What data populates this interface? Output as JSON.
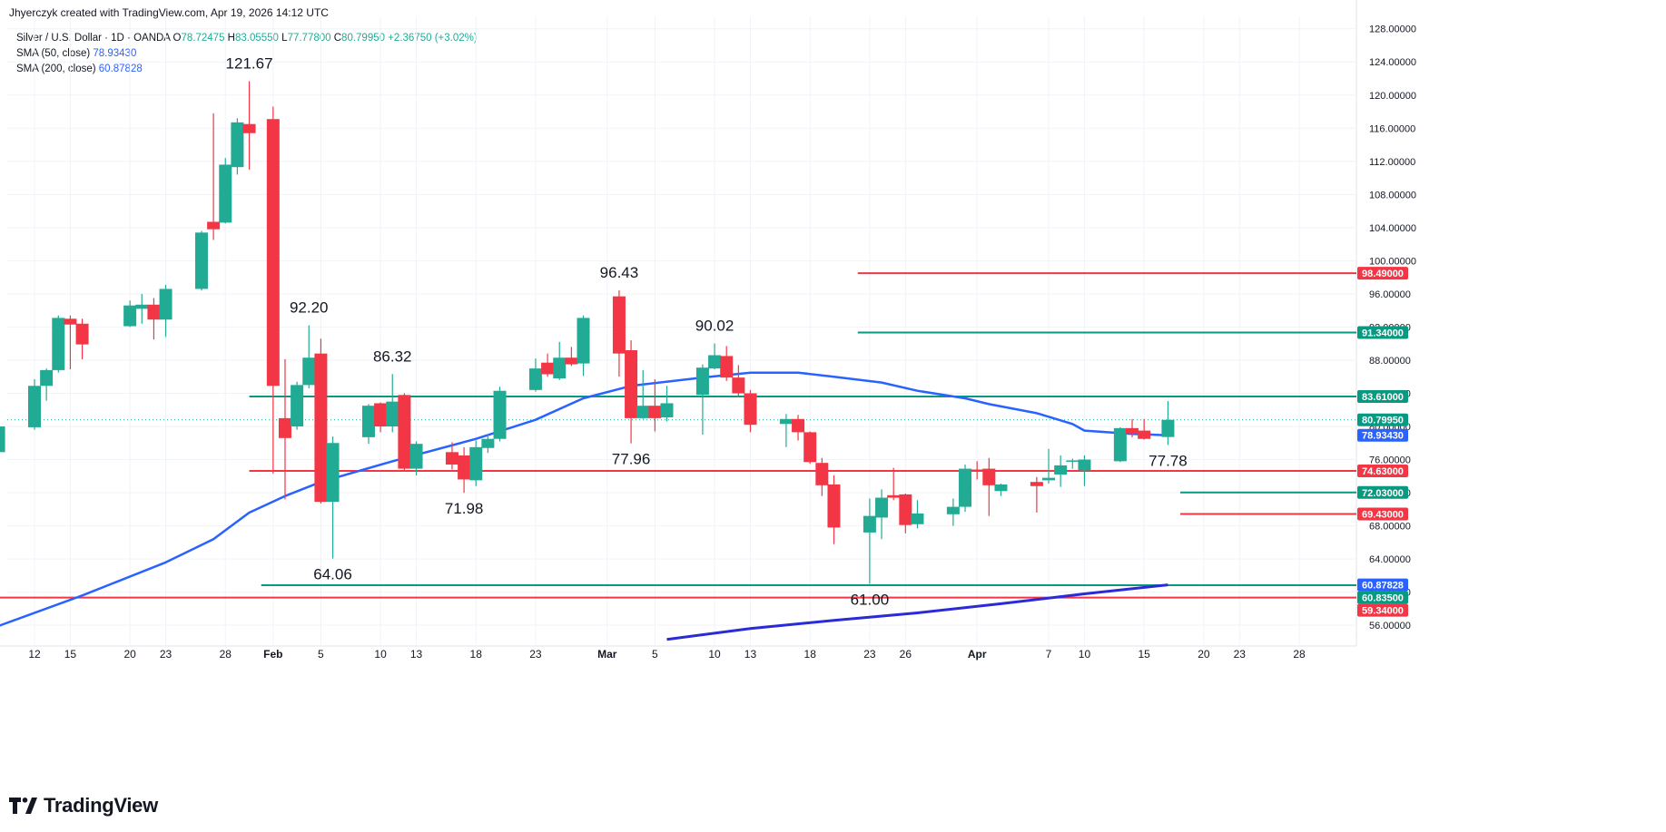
{
  "header": {
    "attribution": "Jhyerczyk created with TradingView.com, Apr 19, 2026 14:12 UTC"
  },
  "legend": {
    "symbol": "Silver / U.S. Dollar · 1D · OANDA",
    "ohlc": {
      "o_label": "O",
      "o": "78.72475",
      "h_label": "H",
      "h": "83.05550",
      "l_label": "L",
      "l": "77.77800",
      "c_label": "C",
      "c": "80.79950",
      "chg": "+2.36750 (+3.02%)"
    },
    "sma50": {
      "label": "SMA (50, close)",
      "value": "78.93430"
    },
    "sma200": {
      "label": "SMA (200, close)",
      "value": "60.87828"
    }
  },
  "branding": {
    "name": "TradingView"
  },
  "colors": {
    "up": "#22ab94",
    "down": "#f23645",
    "sma": "#2962ff",
    "sma200": "#2a2ad8",
    "green_line": "#089981",
    "red_line": "#f23645",
    "grid": "#f0f3fa",
    "axis_text": "#131722"
  },
  "chart_data": {
    "type": "candlestick",
    "title": "Silver / U.S. Dollar · 1D · OANDA",
    "ylim": [
      53.5,
      129.5
    ],
    "y_ticks": [
      "128.00000",
      "124.00000",
      "120.00000",
      "116.00000",
      "112.00000",
      "108.00000",
      "104.00000",
      "100.00000",
      "96.00000",
      "92.00000",
      "88.00000",
      "84.00000",
      "80.00000",
      "76.00000",
      "72.00000",
      "68.00000",
      "64.00000",
      "60.00000",
      "56.00000"
    ],
    "x_ticks": [
      {
        "label": "12",
        "date": "2026-01-12",
        "bold": false
      },
      {
        "label": "15",
        "date": "2026-01-15",
        "bold": false
      },
      {
        "label": "20",
        "date": "2026-01-20",
        "bold": false
      },
      {
        "label": "23",
        "date": "2026-01-23",
        "bold": false
      },
      {
        "label": "28",
        "date": "2026-01-28",
        "bold": false
      },
      {
        "label": "Feb",
        "date": "2026-02-01",
        "bold": true
      },
      {
        "label": "5",
        "date": "2026-02-05",
        "bold": false
      },
      {
        "label": "10",
        "date": "2026-02-10",
        "bold": false
      },
      {
        "label": "13",
        "date": "2026-02-13",
        "bold": false
      },
      {
        "label": "18",
        "date": "2026-02-18",
        "bold": false
      },
      {
        "label": "23",
        "date": "2026-02-23",
        "bold": false
      },
      {
        "label": "Mar",
        "date": "2026-03-01",
        "bold": true
      },
      {
        "label": "5",
        "date": "2026-03-05",
        "bold": false
      },
      {
        "label": "10",
        "date": "2026-03-10",
        "bold": false
      },
      {
        "label": "13",
        "date": "2026-03-13",
        "bold": false
      },
      {
        "label": "18",
        "date": "2026-03-18",
        "bold": false
      },
      {
        "label": "23",
        "date": "2026-03-23",
        "bold": false
      },
      {
        "label": "26",
        "date": "2026-03-26",
        "bold": false
      },
      {
        "label": "Apr",
        "date": "2026-04-01",
        "bold": true
      },
      {
        "label": "7",
        "date": "2026-04-07",
        "bold": false
      },
      {
        "label": "10",
        "date": "2026-04-10",
        "bold": false
      },
      {
        "label": "15",
        "date": "2026-04-15",
        "bold": false
      },
      {
        "label": "20",
        "date": "2026-04-20",
        "bold": false
      },
      {
        "label": "23",
        "date": "2026-04-23",
        "bold": false
      },
      {
        "label": "28",
        "date": "2026-04-28",
        "bold": false
      }
    ],
    "candles": [
      {
        "date": "2026-01-09",
        "o": 76.9,
        "h": 80.8,
        "l": 75.6,
        "c": 80.0
      },
      {
        "date": "2026-01-12",
        "o": 79.9,
        "h": 85.7,
        "l": 79.6,
        "c": 84.9
      },
      {
        "date": "2026-01-13",
        "o": 84.9,
        "h": 87.0,
        "l": 83.1,
        "c": 86.8
      },
      {
        "date": "2026-01-14",
        "o": 86.8,
        "h": 93.4,
        "l": 86.5,
        "c": 93.1
      },
      {
        "date": "2026-01-15",
        "o": 93.0,
        "h": 93.4,
        "l": 86.9,
        "c": 92.3
      },
      {
        "date": "2026-01-16",
        "o": 92.4,
        "h": 93.0,
        "l": 88.1,
        "c": 89.9
      },
      {
        "date": "2026-01-20",
        "o": 92.1,
        "h": 95.2,
        "l": 92.0,
        "c": 94.6
      },
      {
        "date": "2026-01-21",
        "o": 94.2,
        "h": 96.0,
        "l": 92.4,
        "c": 94.7
      },
      {
        "date": "2026-01-22",
        "o": 94.7,
        "h": 95.5,
        "l": 90.5,
        "c": 92.9
      },
      {
        "date": "2026-01-23",
        "o": 92.9,
        "h": 97.1,
        "l": 90.8,
        "c": 96.6
      },
      {
        "date": "2026-01-26",
        "o": 96.6,
        "h": 103.6,
        "l": 96.4,
        "c": 103.4
      },
      {
        "date": "2026-01-27",
        "o": 104.7,
        "h": 117.8,
        "l": 102.5,
        "c": 103.8
      },
      {
        "date": "2026-01-28",
        "o": 104.6,
        "h": 112.4,
        "l": 104.5,
        "c": 111.6
      },
      {
        "date": "2026-01-29",
        "o": 111.3,
        "h": 117.2,
        "l": 110.4,
        "c": 116.7
      },
      {
        "date": "2026-01-30",
        "o": 116.5,
        "h": 121.67,
        "l": 111.0,
        "c": 115.4
      },
      {
        "date": "2026-02-01",
        "o": 117.1,
        "h": 118.6,
        "l": 74.3,
        "c": 84.9
      },
      {
        "date": "2026-02-02",
        "o": 81.0,
        "h": 88.1,
        "l": 71.2,
        "c": 78.6
      },
      {
        "date": "2026-02-03",
        "o": 80.0,
        "h": 85.4,
        "l": 79.6,
        "c": 85.0
      },
      {
        "date": "2026-02-04",
        "o": 85.0,
        "h": 92.2,
        "l": 84.6,
        "c": 88.3
      },
      {
        "date": "2026-02-05",
        "o": 88.8,
        "h": 90.6,
        "l": 70.7,
        "c": 70.9
      },
      {
        "date": "2026-02-06",
        "o": 70.9,
        "h": 78.8,
        "l": 64.06,
        "c": 78.0
      },
      {
        "date": "2026-02-09",
        "o": 78.7,
        "h": 82.7,
        "l": 77.9,
        "c": 82.5
      },
      {
        "date": "2026-02-10",
        "o": 82.8,
        "h": 82.9,
        "l": 79.3,
        "c": 80.0
      },
      {
        "date": "2026-02-11",
        "o": 80.0,
        "h": 86.32,
        "l": 79.3,
        "c": 83.0
      },
      {
        "date": "2026-02-12",
        "o": 83.8,
        "h": 84.0,
        "l": 74.7,
        "c": 74.9
      },
      {
        "date": "2026-02-13",
        "o": 74.9,
        "h": 78.2,
        "l": 74.1,
        "c": 77.9
      },
      {
        "date": "2026-02-16",
        "o": 76.9,
        "h": 78.1,
        "l": 74.8,
        "c": 75.4
      },
      {
        "date": "2026-02-17",
        "o": 76.5,
        "h": 77.5,
        "l": 71.98,
        "c": 73.6
      },
      {
        "date": "2026-02-18",
        "o": 73.5,
        "h": 78.3,
        "l": 72.8,
        "c": 77.5
      },
      {
        "date": "2026-02-19",
        "o": 77.4,
        "h": 79.1,
        "l": 76.8,
        "c": 78.5
      },
      {
        "date": "2026-02-20",
        "o": 78.5,
        "h": 84.8,
        "l": 78.2,
        "c": 84.3
      },
      {
        "date": "2026-02-23",
        "o": 84.4,
        "h": 88.2,
        "l": 84.2,
        "c": 87.0
      },
      {
        "date": "2026-02-24",
        "o": 87.7,
        "h": 88.8,
        "l": 86.0,
        "c": 86.3
      },
      {
        "date": "2026-02-25",
        "o": 85.8,
        "h": 90.2,
        "l": 85.6,
        "c": 88.3
      },
      {
        "date": "2026-02-26",
        "o": 88.3,
        "h": 89.6,
        "l": 87.3,
        "c": 87.5
      },
      {
        "date": "2026-02-27",
        "o": 87.6,
        "h": 93.4,
        "l": 86.1,
        "c": 93.1
      },
      {
        "date": "2026-03-02",
        "o": 95.7,
        "h": 96.43,
        "l": 86.0,
        "c": 88.8
      },
      {
        "date": "2026-03-03",
        "o": 89.2,
        "h": 90.4,
        "l": 77.96,
        "c": 81.0
      },
      {
        "date": "2026-03-04",
        "o": 81.0,
        "h": 86.8,
        "l": 80.9,
        "c": 82.5
      },
      {
        "date": "2026-03-05",
        "o": 82.5,
        "h": 85.7,
        "l": 79.4,
        "c": 81.0
      },
      {
        "date": "2026-03-06",
        "o": 81.1,
        "h": 84.9,
        "l": 80.6,
        "c": 82.8
      },
      {
        "date": "2026-03-09",
        "o": 83.8,
        "h": 87.5,
        "l": 79.0,
        "c": 87.1
      },
      {
        "date": "2026-03-10",
        "o": 87.0,
        "h": 90.02,
        "l": 86.9,
        "c": 88.6
      },
      {
        "date": "2026-03-11",
        "o": 88.5,
        "h": 89.7,
        "l": 85.5,
        "c": 85.9
      },
      {
        "date": "2026-03-12",
        "o": 85.9,
        "h": 87.4,
        "l": 83.6,
        "c": 84.0
      },
      {
        "date": "2026-03-13",
        "o": 84.0,
        "h": 84.4,
        "l": 79.3,
        "c": 80.2
      },
      {
        "date": "2026-03-16",
        "o": 80.3,
        "h": 81.5,
        "l": 77.5,
        "c": 80.9
      },
      {
        "date": "2026-03-17",
        "o": 80.9,
        "h": 81.4,
        "l": 78.3,
        "c": 79.3
      },
      {
        "date": "2026-03-18",
        "o": 79.3,
        "h": 79.4,
        "l": 75.5,
        "c": 75.7
      },
      {
        "date": "2026-03-19",
        "o": 75.6,
        "h": 76.2,
        "l": 71.6,
        "c": 72.9
      },
      {
        "date": "2026-03-20",
        "o": 73.0,
        "h": 74.1,
        "l": 65.8,
        "c": 67.8
      },
      {
        "date": "2026-03-23",
        "o": 67.2,
        "h": 71.3,
        "l": 61.0,
        "c": 69.2
      },
      {
        "date": "2026-03-24",
        "o": 69.0,
        "h": 72.4,
        "l": 66.4,
        "c": 71.4
      },
      {
        "date": "2026-03-25",
        "o": 71.7,
        "h": 75.0,
        "l": 71.1,
        "c": 71.4
      },
      {
        "date": "2026-03-26",
        "o": 71.8,
        "h": 71.9,
        "l": 67.1,
        "c": 68.1
      },
      {
        "date": "2026-03-27",
        "o": 68.2,
        "h": 71.1,
        "l": 67.7,
        "c": 69.5
      },
      {
        "date": "2026-03-30",
        "o": 69.4,
        "h": 71.3,
        "l": 68.0,
        "c": 70.3
      },
      {
        "date": "2026-03-31",
        "o": 70.3,
        "h": 75.4,
        "l": 69.7,
        "c": 74.9
      },
      {
        "date": "2026-04-01",
        "o": 74.8,
        "h": 75.8,
        "l": 73.6,
        "c": 74.6
      },
      {
        "date": "2026-04-02",
        "o": 74.9,
        "h": 76.2,
        "l": 69.2,
        "c": 72.9
      },
      {
        "date": "2026-04-03",
        "o": 72.2,
        "h": 73.1,
        "l": 71.6,
        "c": 73.0
      },
      {
        "date": "2026-04-06",
        "o": 73.3,
        "h": 73.9,
        "l": 69.6,
        "c": 72.8
      },
      {
        "date": "2026-04-07",
        "o": 73.5,
        "h": 77.3,
        "l": 73.1,
        "c": 73.8
      },
      {
        "date": "2026-04-08",
        "o": 74.2,
        "h": 76.5,
        "l": 72.7,
        "c": 75.3
      },
      {
        "date": "2026-04-09",
        "o": 75.9,
        "h": 76.1,
        "l": 74.9,
        "c": 75.9
      },
      {
        "date": "2026-04-10",
        "o": 74.7,
        "h": 76.5,
        "l": 72.8,
        "c": 76.0
      },
      {
        "date": "2026-04-13",
        "o": 75.8,
        "h": 79.9,
        "l": 75.7,
        "c": 79.8
      },
      {
        "date": "2026-04-14",
        "o": 79.8,
        "h": 80.9,
        "l": 78.7,
        "c": 79.1
      },
      {
        "date": "2026-04-15",
        "o": 79.5,
        "h": 80.9,
        "l": 78.4,
        "c": 78.5
      },
      {
        "date": "2026-04-17",
        "o": 78.72475,
        "h": 83.0555,
        "l": 77.778,
        "c": 80.7995
      }
    ],
    "sma50": [
      {
        "date": "2026-01-08",
        "v": 55.4
      },
      {
        "date": "2026-01-16",
        "v": 59.6
      },
      {
        "date": "2026-01-23",
        "v": 63.6
      },
      {
        "date": "2026-01-27",
        "v": 66.4
      },
      {
        "date": "2026-01-30",
        "v": 69.6
      },
      {
        "date": "2026-02-02",
        "v": 71.6
      },
      {
        "date": "2026-02-05",
        "v": 73.3
      },
      {
        "date": "2026-02-11",
        "v": 75.8
      },
      {
        "date": "2026-02-18",
        "v": 78.5
      },
      {
        "date": "2026-02-23",
        "v": 80.8
      },
      {
        "date": "2026-02-27",
        "v": 83.4
      },
      {
        "date": "2026-03-03",
        "v": 84.9
      },
      {
        "date": "2026-03-09",
        "v": 85.9
      },
      {
        "date": "2026-03-13",
        "v": 86.5
      },
      {
        "date": "2026-03-17",
        "v": 86.5
      },
      {
        "date": "2026-03-20",
        "v": 86.0
      },
      {
        "date": "2026-03-24",
        "v": 85.3
      },
      {
        "date": "2026-03-27",
        "v": 84.3
      },
      {
        "date": "2026-03-31",
        "v": 83.4
      },
      {
        "date": "2026-04-02",
        "v": 82.7
      },
      {
        "date": "2026-04-06",
        "v": 81.6
      },
      {
        "date": "2026-04-09",
        "v": 80.3
      },
      {
        "date": "2026-04-10",
        "v": 79.5
      },
      {
        "date": "2026-04-14",
        "v": 79.1
      },
      {
        "date": "2026-04-17",
        "v": 78.9343
      }
    ],
    "sma200": [
      {
        "date": "2026-03-06",
        "v": 54.3
      },
      {
        "date": "2026-03-13",
        "v": 55.6
      },
      {
        "date": "2026-03-20",
        "v": 56.6
      },
      {
        "date": "2026-03-27",
        "v": 57.5
      },
      {
        "date": "2026-04-03",
        "v": 58.6
      },
      {
        "date": "2026-04-10",
        "v": 59.8
      },
      {
        "date": "2026-04-17",
        "v": 60.87828
      }
    ],
    "levels": [
      {
        "value": 98.49,
        "label": "98.49000",
        "color": "red",
        "from": "2026-03-22",
        "to": "2026-04-17"
      },
      {
        "value": 91.34,
        "label": "91.34000",
        "color": "green",
        "from": "2026-03-22",
        "to": "2026-04-17"
      },
      {
        "value": 83.61,
        "label": "83.61000",
        "color": "green",
        "from": "2026-01-30",
        "to": "2026-04-17"
      },
      {
        "value": 74.63,
        "label": "74.63000",
        "color": "red",
        "from": "2026-01-30",
        "to": "2026-04-17"
      },
      {
        "value": 72.03,
        "label": "72.03000",
        "color": "green",
        "from": "2026-04-17",
        "to": "2026-04-17"
      },
      {
        "value": 69.43,
        "label": "69.43000",
        "color": "red",
        "from": "2026-04-17",
        "to": "2026-04-17"
      },
      {
        "value": 60.835,
        "label": "60.83500",
        "color": "green",
        "from": "2026-01-31",
        "to": "2026-04-17"
      },
      {
        "value": 59.34,
        "label": "59.34000",
        "color": "red",
        "from": "2026-01-08",
        "to": "2026-04-17"
      }
    ],
    "price_badges": [
      {
        "label": "80.79950",
        "value": 80.7995,
        "color": "green"
      },
      {
        "label": "78.93430",
        "value": 78.9343,
        "color": "blue"
      },
      {
        "label": "60.87828",
        "value": 60.87828,
        "color": "blue"
      }
    ],
    "annotations": [
      {
        "text": "121.67",
        "date": "2026-01-30",
        "value": 121.67,
        "pos": "above"
      },
      {
        "text": "92.20",
        "date": "2026-02-04",
        "value": 92.2,
        "pos": "above"
      },
      {
        "text": "86.32",
        "date": "2026-02-11",
        "value": 86.32,
        "pos": "above"
      },
      {
        "text": "64.06",
        "date": "2026-02-06",
        "value": 64.06,
        "pos": "below"
      },
      {
        "text": "71.98",
        "date": "2026-02-17",
        "value": 71.98,
        "pos": "below"
      },
      {
        "text": "96.43",
        "date": "2026-03-02",
        "value": 96.43,
        "pos": "above"
      },
      {
        "text": "77.96",
        "date": "2026-03-03",
        "value": 77.96,
        "pos": "below"
      },
      {
        "text": "90.02",
        "date": "2026-03-10",
        "value": 90.02,
        "pos": "above"
      },
      {
        "text": "61.00",
        "date": "2026-03-23",
        "value": 61.0,
        "pos": "below"
      },
      {
        "text": "77.78",
        "date": "2026-04-17",
        "value": 77.778,
        "pos": "below"
      }
    ]
  }
}
